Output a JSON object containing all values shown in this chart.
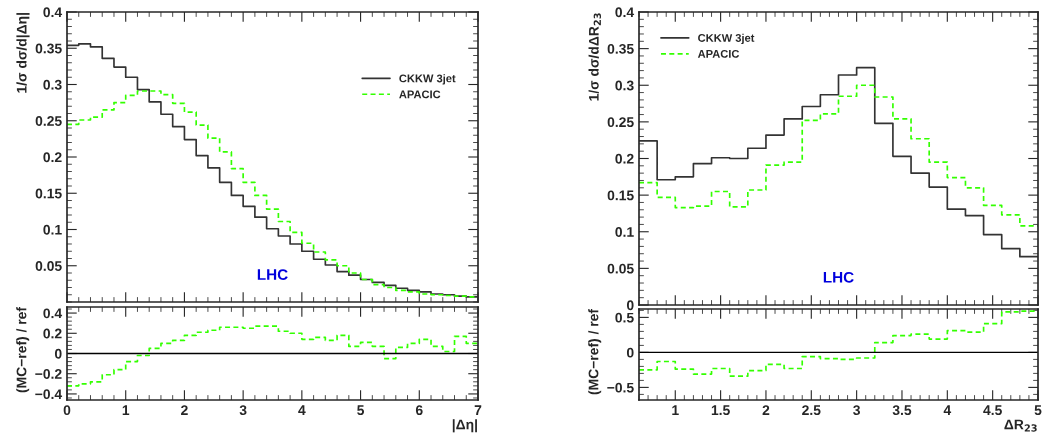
{
  "chart_data": [
    {
      "type": "histogram",
      "ylabel": "1/σ dσ/d|Δη|",
      "tick_labels": "y",
      "legend": "top right",
      "annotations": [
        "LHC"
      ],
      "bins": [
        0,
        0.2,
        0.4,
        0.6,
        0.8,
        1.0,
        1.2,
        1.4,
        1.6,
        1.8,
        2.0,
        2.2,
        2.4,
        2.6,
        2.8,
        3.0,
        3.2,
        3.4,
        3.6,
        3.8,
        4.0,
        4.2,
        4.4,
        4.6,
        4.8,
        5.0,
        5.2,
        5.4,
        5.6,
        5.8,
        6.0,
        6.2,
        6.4,
        6.6,
        6.8,
        7.0
      ],
      "series": [
        {
          "name": "CKKW 3jet",
          "color": "#333333",
          "line_style": "solid",
          "values": [
            0.354,
            0.356,
            0.352,
            0.336,
            0.324,
            0.31,
            0.293,
            0.276,
            0.259,
            0.242,
            0.224,
            0.202,
            0.185,
            0.165,
            0.147,
            0.132,
            0.117,
            0.101,
            0.091,
            0.08,
            0.07,
            0.059,
            0.051,
            0.042,
            0.037,
            0.031,
            0.027,
            0.023,
            0.019,
            0.016,
            0.014,
            0.011,
            0.01,
            0.008,
            0.007
          ]
        },
        {
          "name": "APACIC",
          "color": "#33ff00",
          "line_style": "dashed",
          "values": [
            0.245,
            0.251,
            0.255,
            0.265,
            0.275,
            0.285,
            0.291,
            0.291,
            0.286,
            0.274,
            0.262,
            0.244,
            0.226,
            0.207,
            0.184,
            0.165,
            0.147,
            0.128,
            0.111,
            0.096,
            0.081,
            0.069,
            0.058,
            0.05,
            0.04,
            0.031,
            0.024,
            0.02,
            0.016,
            0.014,
            0.011,
            0.01,
            0.009,
            0.008,
            0.007
          ]
        }
      ],
      "xlim": [
        0,
        7
      ],
      "xticks": [
        0,
        1,
        2,
        3,
        4,
        5,
        6,
        7
      ],
      "ylim": [
        0,
        0.4
      ],
      "yticks": [
        0.05,
        0.1,
        0.15,
        0.2,
        0.25,
        0.3,
        0.35,
        0.4
      ]
    },
    {
      "type": "histogram",
      "ylabel": "1/σ dσ/dΔR$_{23}$",
      "tick_labels": "y",
      "legend": "top left",
      "annotations": [
        "LHC"
      ],
      "bins": [
        0.6,
        0.8,
        1.0,
        1.2,
        1.4,
        1.6,
        1.8,
        2.0,
        2.2,
        2.4,
        2.6,
        2.8,
        3.0,
        3.2,
        3.4,
        3.6,
        3.8,
        4.0,
        4.2,
        4.4,
        4.6,
        4.8,
        5.0
      ],
      "series": [
        {
          "name": "CKKW 3jet",
          "color": "#333333",
          "line_style": "solid",
          "values": [
            0.224,
            0.171,
            0.175,
            0.193,
            0.201,
            0.2,
            0.214,
            0.232,
            0.254,
            0.271,
            0.287,
            0.314,
            0.324,
            0.248,
            0.203,
            0.18,
            0.161,
            0.131,
            0.122,
            0.096,
            0.077,
            0.066
          ]
        },
        {
          "name": "APACIC",
          "color": "#33ff00",
          "line_style": "dashed",
          "values": [
            0.167,
            0.147,
            0.133,
            0.135,
            0.155,
            0.134,
            0.157,
            0.191,
            0.195,
            0.252,
            0.261,
            0.285,
            0.3,
            0.284,
            0.254,
            0.227,
            0.195,
            0.174,
            0.16,
            0.136,
            0.123,
            0.108
          ]
        }
      ],
      "xlim": [
        0.6,
        5
      ],
      "xticks": [
        1,
        1.5,
        2,
        2.5,
        3,
        3.5,
        4,
        4.5,
        5
      ],
      "ylim": [
        0,
        0.4
      ],
      "yticks": [
        0,
        0.05,
        0.1,
        0.15,
        0.2,
        0.25,
        0.3,
        0.35,
        0.4
      ]
    },
    {
      "type": "histogram",
      "ylabel": "(MC−ref) / ref",
      "xlabel": "|Δη|",
      "bins": [
        0,
        0.2,
        0.4,
        0.6,
        0.8,
        1.0,
        1.2,
        1.4,
        1.6,
        1.8,
        2.0,
        2.2,
        2.4,
        2.6,
        2.8,
        3.0,
        3.2,
        3.4,
        3.6,
        3.8,
        4.0,
        4.2,
        4.4,
        4.6,
        4.8,
        5.0,
        5.2,
        5.4,
        5.6,
        5.8,
        6.0,
        6.2,
        6.4,
        6.6,
        6.8,
        7.0
      ],
      "series": [
        {
          "color": "#33ff00",
          "line_style": "dashed",
          "values": [
            -0.32,
            -0.3,
            -0.28,
            -0.21,
            -0.16,
            -0.08,
            -0.02,
            0.05,
            0.1,
            0.13,
            0.18,
            0.21,
            0.23,
            0.26,
            0.26,
            0.25,
            0.27,
            0.27,
            0.22,
            0.2,
            0.14,
            0.16,
            0.13,
            0.18,
            0.07,
            0.11,
            0.07,
            -0.05,
            0.06,
            0.1,
            0.14,
            0.07,
            0.02,
            0.17,
            0.1
          ]
        }
      ],
      "ref_lines": [
        {
          "axis": "y",
          "value": 0,
          "color": "#000000"
        }
      ],
      "xlim": [
        0,
        7
      ],
      "xticks": [
        0,
        1,
        2,
        3,
        4,
        5,
        6,
        7
      ],
      "ylim": [
        -0.46,
        0.46
      ],
      "yticks": [
        {
          "value": -0.4,
          "label": "−0.4"
        },
        {
          "value": -0.2,
          "label": "−0.2"
        },
        0,
        0.2,
        0.4
      ]
    },
    {
      "type": "histogram",
      "ylabel": "(MC−ref) / ref",
      "xlabel": "ΔR$_{23}$",
      "bins": [
        0.6,
        0.8,
        1.0,
        1.2,
        1.4,
        1.6,
        1.8,
        2.0,
        2.2,
        2.4,
        2.6,
        2.8,
        3.0,
        3.2,
        3.4,
        3.6,
        3.8,
        4.0,
        4.2,
        4.4,
        4.6,
        4.8,
        5.0
      ],
      "series": [
        {
          "color": "#33ff00",
          "line_style": "dashed",
          "values": [
            -0.25,
            -0.13,
            -0.24,
            -0.31,
            -0.23,
            -0.34,
            -0.26,
            -0.17,
            -0.23,
            -0.06,
            -0.09,
            -0.1,
            -0.08,
            0.14,
            0.24,
            0.26,
            0.19,
            0.31,
            0.29,
            0.41,
            0.58,
            0.59
          ]
        }
      ],
      "ref_lines": [
        {
          "axis": "y",
          "value": 0,
          "color": "#000000"
        }
      ],
      "xlim": [
        0.6,
        5
      ],
      "xticks": [
        1,
        1.5,
        2,
        2.5,
        3,
        3.5,
        4,
        4.5,
        5
      ],
      "ylim": [
        -0.68,
        0.62
      ],
      "yticks": [
        {
          "value": -0.5,
          "label": "−0.5"
        },
        0,
        0.5
      ]
    }
  ]
}
